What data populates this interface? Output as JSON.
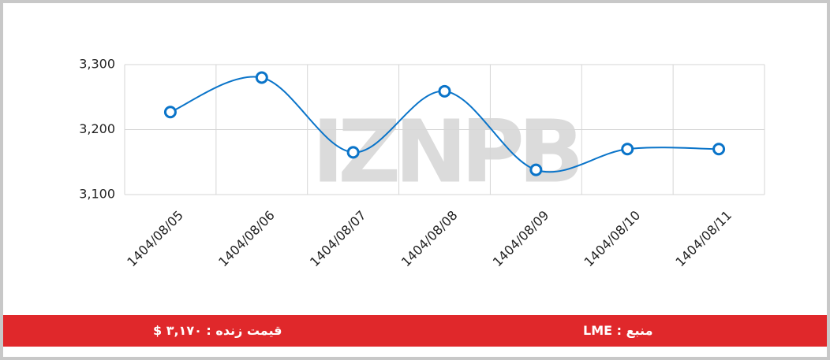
{
  "chart_data": {
    "type": "line",
    "watermark": "IZNPB",
    "categories": [
      "1404/08/05",
      "1404/08/06",
      "1404/08/07",
      "1404/08/08",
      "1404/08/09",
      "1404/08/10",
      "1404/08/11"
    ],
    "values": [
      3227,
      3280,
      3165,
      3259,
      3138,
      3170,
      3170
    ],
    "color": "#0a74c9",
    "ylim": [
      3100,
      3300
    ],
    "yticks": [
      {
        "value": 3100,
        "label": "3,100"
      },
      {
        "value": 3200,
        "label": "3,200"
      },
      {
        "value": 3300,
        "label": "3,300"
      }
    ],
    "grid": true
  },
  "footer": {
    "live_price": "قیمت زنده : ۳,۱۷۰ $",
    "source": "منبع : LME"
  }
}
